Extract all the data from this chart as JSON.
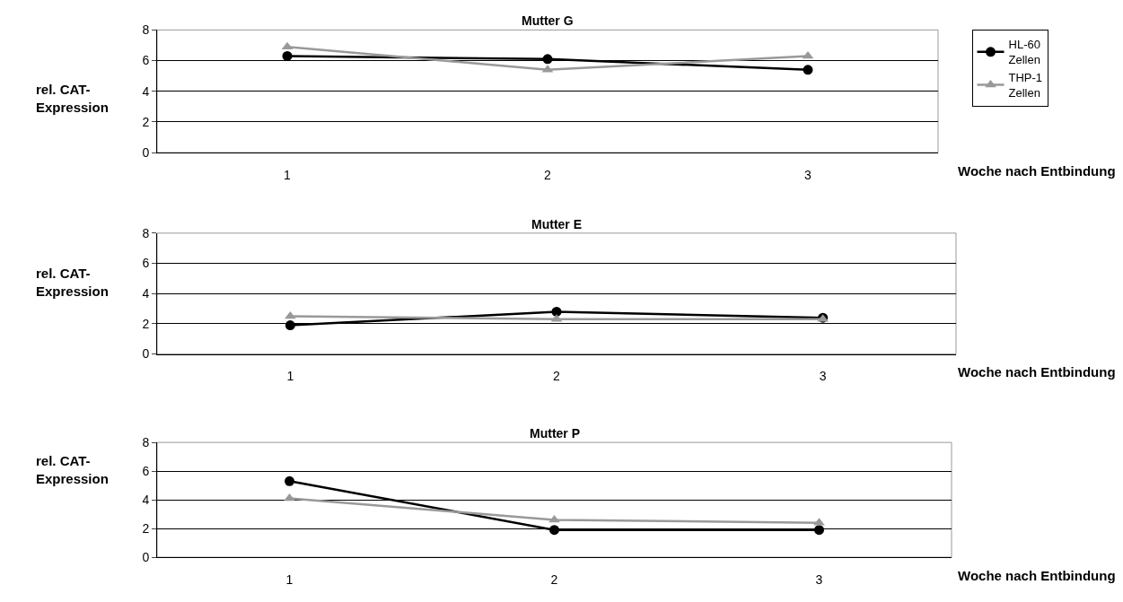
{
  "chart_data": [
    {
      "type": "line",
      "title": "Mutter G",
      "xlabel": "Woche nach Entbindung",
      "ylabel": "rel. CAT-\nExpression",
      "categories": [
        "1",
        "2",
        "3"
      ],
      "ylim": [
        0,
        8
      ],
      "yticks": [
        0,
        2,
        4,
        6,
        8
      ],
      "grid": "y",
      "legend": "right",
      "line_style": "solid",
      "series": [
        {
          "name": "HL-60\nZellen",
          "color": "#000000",
          "marker": "circle",
          "values": [
            6.3,
            6.1,
            5.4
          ]
        },
        {
          "name": "THP-1\nZellen",
          "color": "#999999",
          "marker": "triangle",
          "values": [
            6.9,
            5.4,
            6.3
          ]
        }
      ]
    },
    {
      "type": "line",
      "title": "Mutter E",
      "xlabel": "Woche nach Entbindung",
      "ylabel": "rel. CAT-\nExpression",
      "categories": [
        "1",
        "2",
        "3"
      ],
      "ylim": [
        0,
        8
      ],
      "yticks": [
        0,
        2,
        4,
        6,
        8
      ],
      "grid": "y",
      "line_style": "solid",
      "series": [
        {
          "color": "#000000",
          "marker": "circle",
          "values": [
            1.9,
            2.8,
            2.4
          ]
        },
        {
          "color": "#999999",
          "marker": "triangle",
          "values": [
            2.5,
            2.3,
            2.3
          ]
        }
      ]
    },
    {
      "type": "line",
      "title": "Mutter P",
      "xlabel": "Woche nach Entbindung",
      "ylabel": "rel. CAT-\nExpression",
      "categories": [
        "1",
        "2",
        "3"
      ],
      "ylim": [
        0,
        8
      ],
      "yticks": [
        0,
        2,
        4,
        6,
        8
      ],
      "grid": "y",
      "line_style": "solid",
      "series": [
        {
          "color": "#000000",
          "marker": "circle",
          "values": [
            5.3,
            1.9,
            1.9
          ]
        },
        {
          "color": "#999999",
          "marker": "triangle",
          "values": [
            4.1,
            2.6,
            2.4
          ]
        }
      ]
    }
  ]
}
